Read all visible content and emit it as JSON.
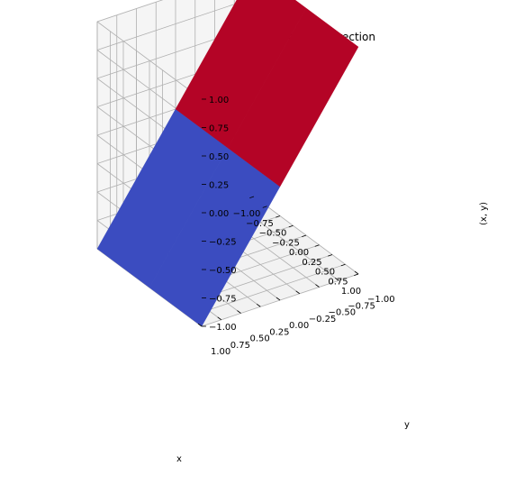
{
  "chart_data": {
    "type": "surface",
    "title": "3-D Prewitt Filter Visualization in y direction",
    "xlabel": "x",
    "ylabel": "y",
    "zlabel": "(x, y)",
    "xlim": [
      -1.0,
      1.0
    ],
    "ylim": [
      -1.0,
      1.0
    ],
    "zlim": [
      -1.0,
      1.0
    ],
    "x_ticks": [
      "−1.00",
      "−0.75",
      "−0.50",
      "−0.25",
      "0.00",
      "0.25",
      "0.50",
      "0.75",
      "1.00"
    ],
    "y_ticks": [
      "−1.00",
      "−0.75",
      "−0.50",
      "−0.25",
      "0.00",
      "0.25",
      "0.50",
      "0.75",
      "1.00"
    ],
    "z_ticks": [
      "−1.00",
      "−0.75",
      "−0.50",
      "−0.25",
      "0.00",
      "0.25",
      "0.50",
      "0.75",
      "1.00"
    ],
    "grid": true,
    "colormap": "coolwarm",
    "x": [
      -1,
      0,
      1
    ],
    "y": [
      -1,
      0,
      1
    ],
    "z": [
      [
        1,
        1,
        1
      ],
      [
        0,
        0,
        0
      ],
      [
        -1,
        -1,
        -1
      ]
    ],
    "colors": {
      "high": "#b40426",
      "low": "#3b4cc0"
    }
  }
}
